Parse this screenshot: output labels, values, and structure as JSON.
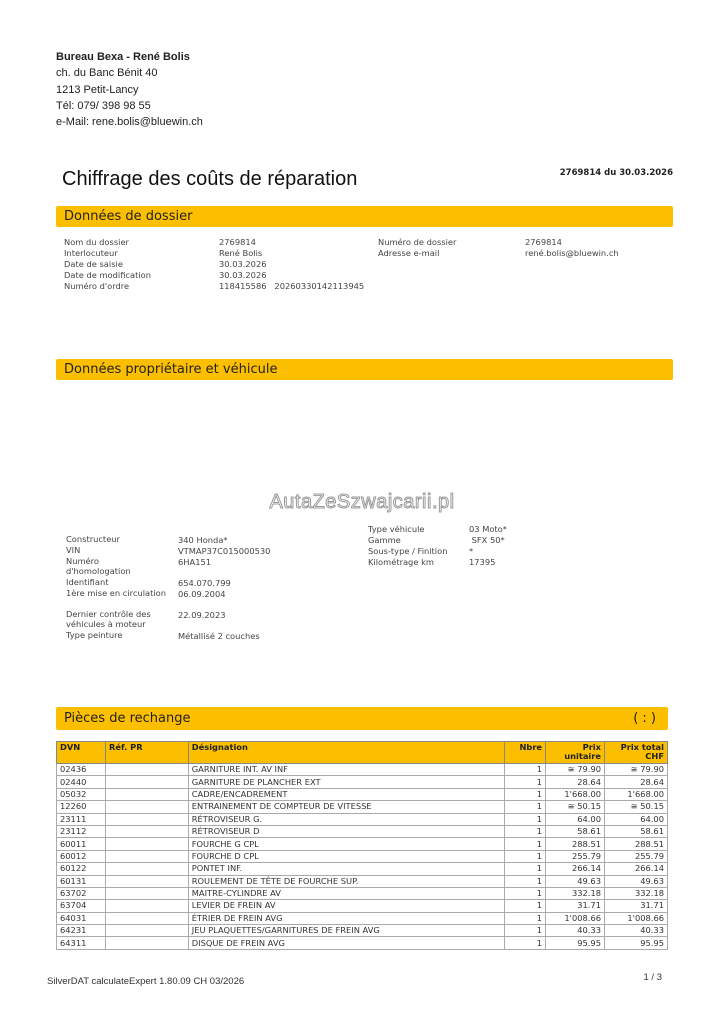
{
  "sender": {
    "name": "Bureau Bexa - René Bolis",
    "street": "ch. du Banc Bénit 40",
    "city": "1213 Petit-Lancy",
    "phone": "Tél: 079/ 398 98 55",
    "email": "e-Mail: rene.bolis@bluewin.ch"
  },
  "document": {
    "title": "Chiffrage des coûts de réparation",
    "reference": "2769814 du 30.03.2026"
  },
  "dossier": {
    "heading": "Données de dossier",
    "left": [
      {
        "label": "Nom du dossier",
        "value": "2769814"
      },
      {
        "label": "Interlocuteur",
        "value": "René Bolis"
      },
      {
        "label": "Date de saisie",
        "value": "30.03.2026"
      },
      {
        "label": "Date de modification",
        "value": "30.03.2026"
      },
      {
        "label": "Numéro d'ordre",
        "value": "118415586   20260330142113945"
      }
    ],
    "right": [
      {
        "label": "Numéro de dossier",
        "value": "2769814"
      },
      {
        "label": "Adresse e-mail",
        "value": "rené.bolis@bluewin.ch"
      }
    ]
  },
  "vehicle": {
    "heading": "Données propriétaire et véhicule",
    "watermark": "AutaZeSzwajcarii.pl",
    "left": [
      {
        "label": "Constructeur",
        "value": "340 Honda*"
      },
      {
        "label": "VIN",
        "value": "VTMAP37C015000530"
      },
      {
        "label": "Numéro d'homologation",
        "value": "6HA151"
      },
      {
        "label": "Identifiant",
        "value": "654.070.799"
      },
      {
        "label": "1ère mise en circulation",
        "value": "06.09.2004"
      },
      {
        "label": "Dernier contrôle des véhicules à moteur",
        "value": "22.09.2023"
      },
      {
        "label": "Type peinture",
        "value": "Métallisé 2 couches"
      }
    ],
    "right": [
      {
        "label": "Type véhicule",
        "value": "03 Moto*"
      },
      {
        "label": "Gamme",
        "value": " SFX 50*"
      },
      {
        "label": "Sous-type / Finition",
        "value": "*"
      },
      {
        "label": "Kilométrage km",
        "value": "17395"
      }
    ]
  },
  "parts": {
    "heading": "Pièces de rechange",
    "heading_right": "( : )",
    "columns": [
      "DVN",
      "Réf. PR",
      "Désignation",
      "Nbre",
      "Prix unitaire",
      "Prix total CHF"
    ],
    "rows": [
      [
        "02436",
        "",
        "GARNITURE INT. AV INF",
        "1",
        "≅ 79.90",
        "≅ 79.90"
      ],
      [
        "02440",
        "",
        "GARNITURE DE PLANCHER EXT",
        "1",
        "28.64",
        "28.64"
      ],
      [
        "05032",
        "",
        "CADRE/ENCADREMENT",
        "1",
        "1'668.00",
        "1'668.00"
      ],
      [
        "12260",
        "",
        "ENTRAINEMENT DE COMPTEUR DE VITESSE",
        "1",
        "≅ 50.15",
        "≅ 50.15"
      ],
      [
        "23111",
        "",
        "RÉTROVISEUR G.",
        "1",
        "64.00",
        "64.00"
      ],
      [
        "23112",
        "",
        "RÉTROVISEUR D",
        "1",
        "58.61",
        "58.61"
      ],
      [
        "60011",
        "",
        "FOURCHE G CPL",
        "1",
        "288.51",
        "288.51"
      ],
      [
        "60012",
        "",
        "FOURCHE D CPL",
        "1",
        "255.79",
        "255.79"
      ],
      [
        "60122",
        "",
        "PONTET INF.",
        "1",
        "266.14",
        "266.14"
      ],
      [
        "60131",
        "",
        "ROULEMENT DE TÊTE DE FOURCHE SUP.",
        "1",
        "49.63",
        "49.63"
      ],
      [
        "63702",
        "",
        "MAITRE-CYLINDRE AV",
        "1",
        "332.18",
        "332.18"
      ],
      [
        "63704",
        "",
        "LEVIER DE FREIN AV",
        "1",
        "31.71",
        "31.71"
      ],
      [
        "64031",
        "",
        "ÉTRIER DE FREIN AVG",
        "1",
        "1'008.66",
        "1'008.66"
      ],
      [
        "64231",
        "",
        "JEU PLAQUETTES/GARNITURES DE FREIN AVG",
        "1",
        "40.33",
        "40.33"
      ],
      [
        "64311",
        "",
        "DISQUE DE FREIN AVG",
        "1",
        "95.95",
        "95.95"
      ]
    ]
  },
  "footer": {
    "software": "SilverDAT calculateExpert 1.80.09   CH 03/2026",
    "page": "1 / 3"
  },
  "colors": {
    "accent": "#fbbf00"
  }
}
